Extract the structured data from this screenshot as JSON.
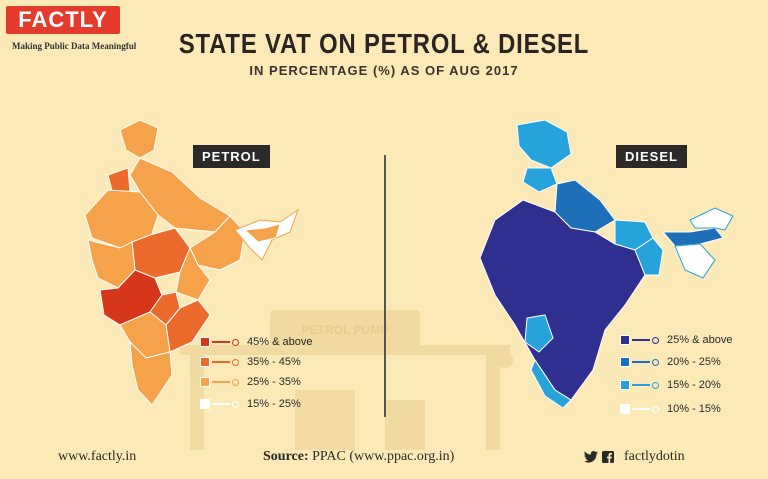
{
  "brand": {
    "logo_text": "FACTLY",
    "tagline": "Making Public Data Meaningful"
  },
  "title": "STATE VAT ON PETROL & DIESEL",
  "subtitle": "IN PERCENTAGE (%) AS OF AUG 2017",
  "petrol": {
    "label": "PETROL",
    "legend": [
      {
        "label": "45% & above",
        "color": "#d6371a"
      },
      {
        "label": "35% - 45%",
        "color": "#ec6a2c"
      },
      {
        "label": "25% - 35%",
        "color": "#f5a24a"
      },
      {
        "label": "15% - 25%",
        "color": "#ffffff"
      }
    ]
  },
  "diesel": {
    "label": "DIESEL",
    "legend": [
      {
        "label": "25% & above",
        "color": "#2e2f8e"
      },
      {
        "label": "20% - 25%",
        "color": "#1d6fb8"
      },
      {
        "label": "15% - 20%",
        "color": "#27a3dc"
      },
      {
        "label": "10% - 15%",
        "color": "#ffffff"
      }
    ]
  },
  "background_sign": "PETROL PUMP",
  "footer": {
    "website": "www.factly.in",
    "source_label": "Source:",
    "source_value": "PPAC (www.ppac.org.in)",
    "social_handle": "factlydotin"
  }
}
